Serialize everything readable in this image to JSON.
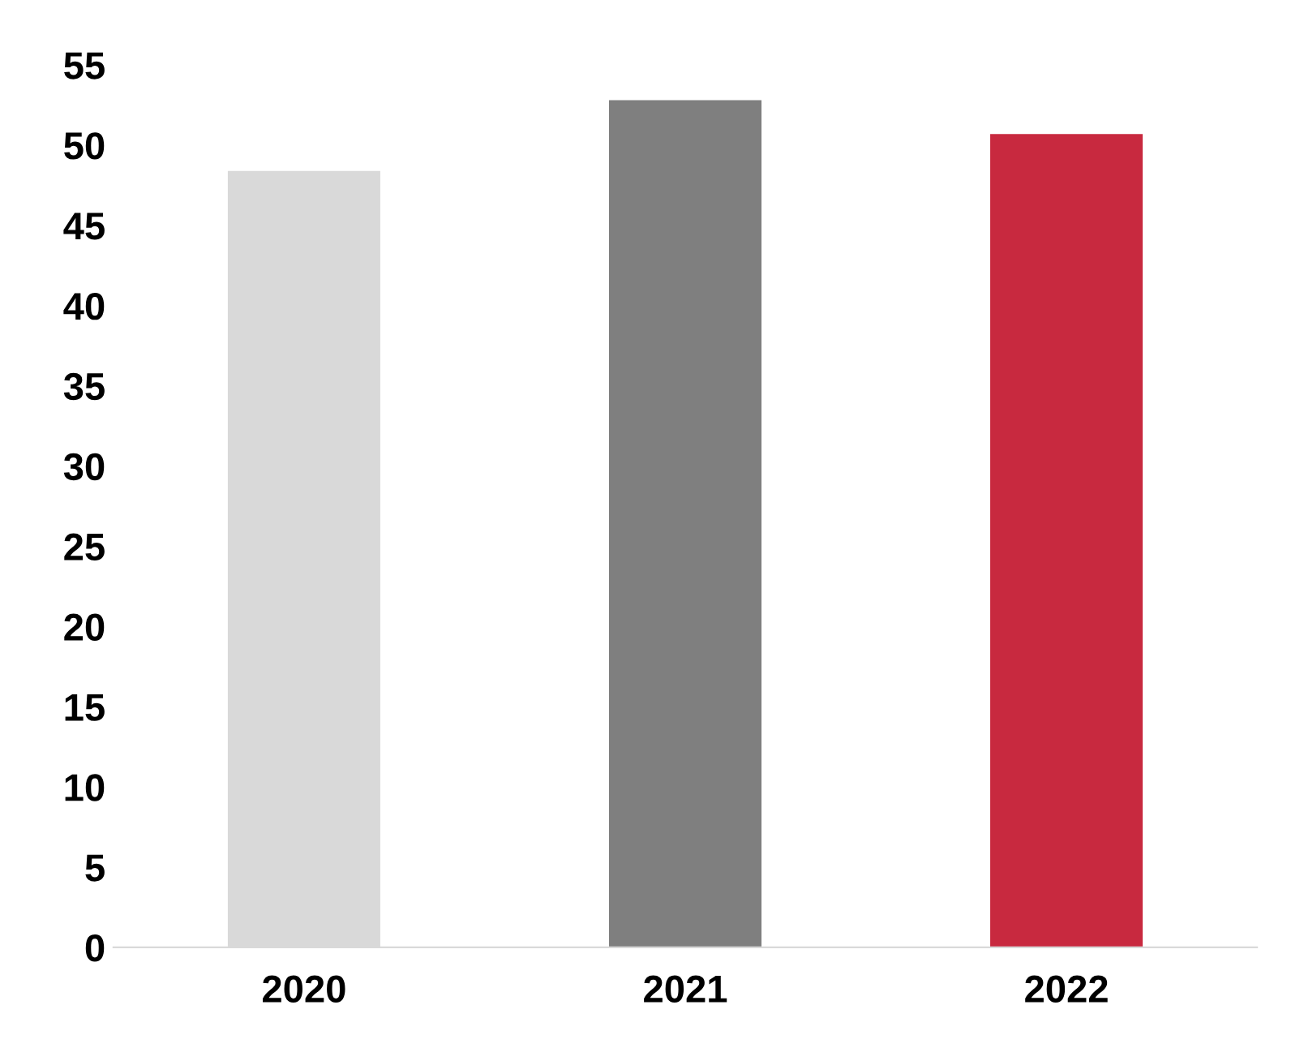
{
  "chart_data": {
    "type": "bar",
    "categories": [
      "2020",
      "2021",
      "2022"
    ],
    "values": [
      48.4,
      52.8,
      50.7
    ],
    "colors": [
      "#d9d9d9",
      "#7f7f7f",
      "#c8293f"
    ],
    "ylim": [
      0,
      55
    ],
    "yticks": [
      0,
      5,
      10,
      15,
      20,
      25,
      30,
      35,
      40,
      45,
      50,
      55
    ],
    "grid": false,
    "legend": false
  }
}
